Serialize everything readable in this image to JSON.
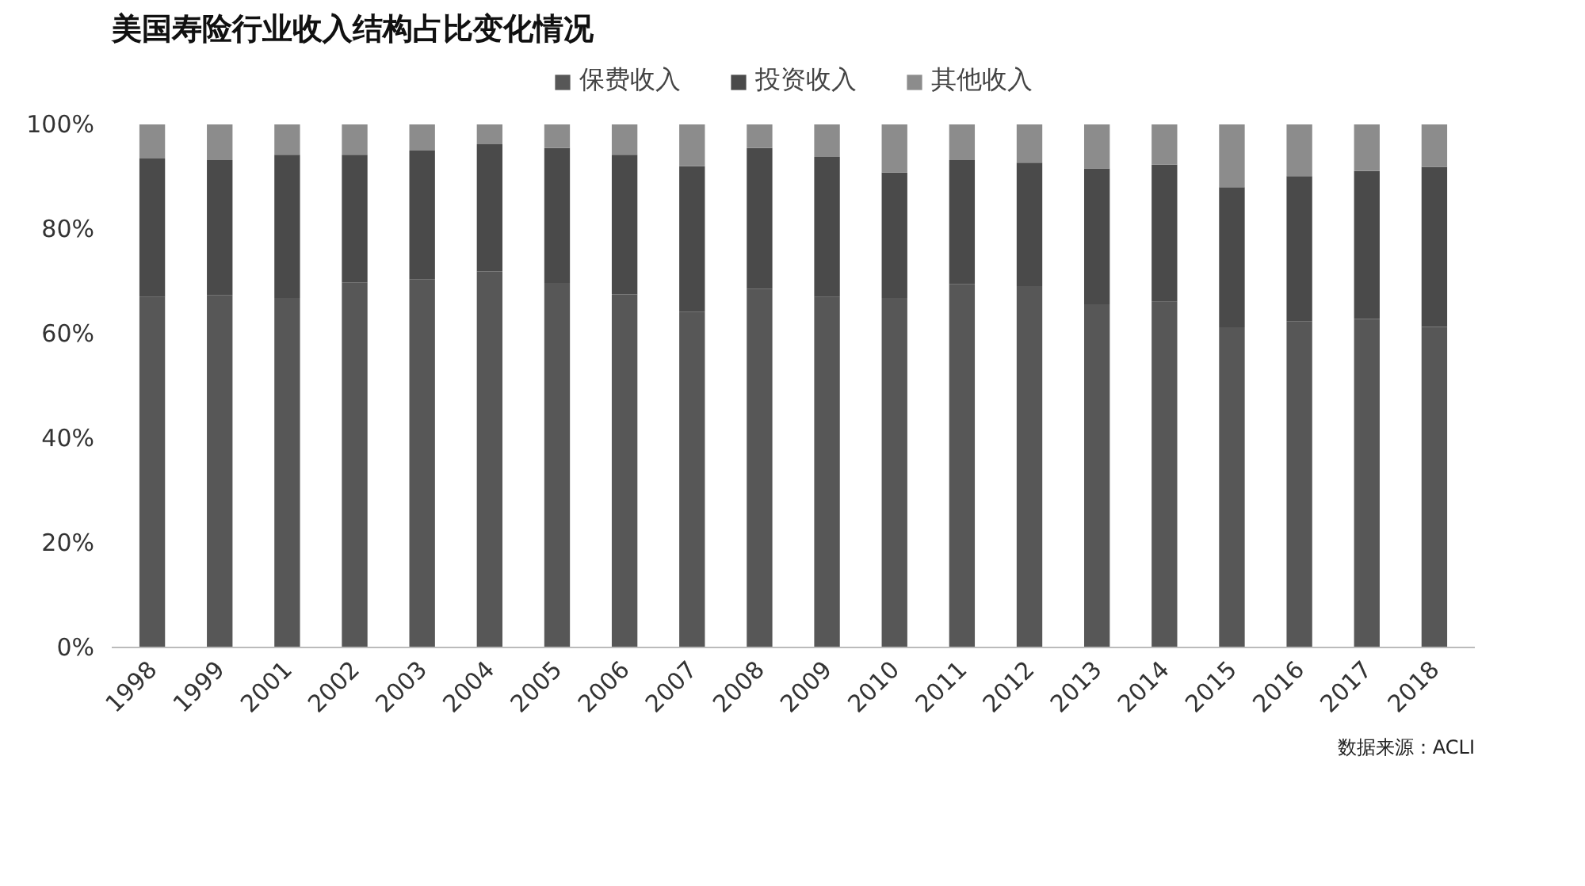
{
  "chart_data": {
    "type": "bar",
    "title": "美国寿险行业收入结构占比变化情况",
    "stacked": true,
    "categories": [
      "1998",
      "1999",
      "2001",
      "2002",
      "2003",
      "2004",
      "2005",
      "2006",
      "2007",
      "2008",
      "2009",
      "2010",
      "2011",
      "2012",
      "2013",
      "2014",
      "2015",
      "2016",
      "2017",
      "2018"
    ],
    "series": [
      {
        "name": "保费收入",
        "color": "#575757",
        "values": [
          67.0,
          67.4,
          66.8,
          69.8,
          70.4,
          71.9,
          69.7,
          67.5,
          64.2,
          68.6,
          67.0,
          66.8,
          69.5,
          69.1,
          65.6,
          66.1,
          61.2,
          62.4,
          62.8,
          61.3
        ]
      },
      {
        "name": "投资收入",
        "color": "#4a4a4a",
        "values": [
          26.5,
          25.8,
          27.4,
          24.4,
          24.6,
          24.3,
          25.8,
          26.7,
          27.8,
          26.9,
          26.8,
          24.0,
          23.7,
          23.6,
          26.0,
          26.2,
          26.8,
          27.7,
          28.3,
          30.6
        ]
      },
      {
        "name": "其他收入",
        "color": "#8c8c8c",
        "values": [
          6.5,
          6.8,
          5.8,
          5.8,
          5.0,
          3.8,
          4.5,
          5.8,
          8.0,
          4.5,
          6.2,
          9.2,
          6.8,
          7.3,
          8.4,
          7.7,
          12.0,
          9.9,
          8.9,
          8.1
        ]
      }
    ],
    "ylim": [
      0,
      100
    ],
    "yticks": [
      {
        "value": 0,
        "label": "0%"
      },
      {
        "value": 20,
        "label": "20%"
      },
      {
        "value": 40,
        "label": "40%"
      },
      {
        "value": 60,
        "label": "60%"
      },
      {
        "value": 80,
        "label": "80%"
      },
      {
        "value": 100,
        "label": "100%"
      }
    ],
    "legend": "top",
    "grid": false,
    "annotations": [
      "数据来源：ACLI"
    ]
  }
}
